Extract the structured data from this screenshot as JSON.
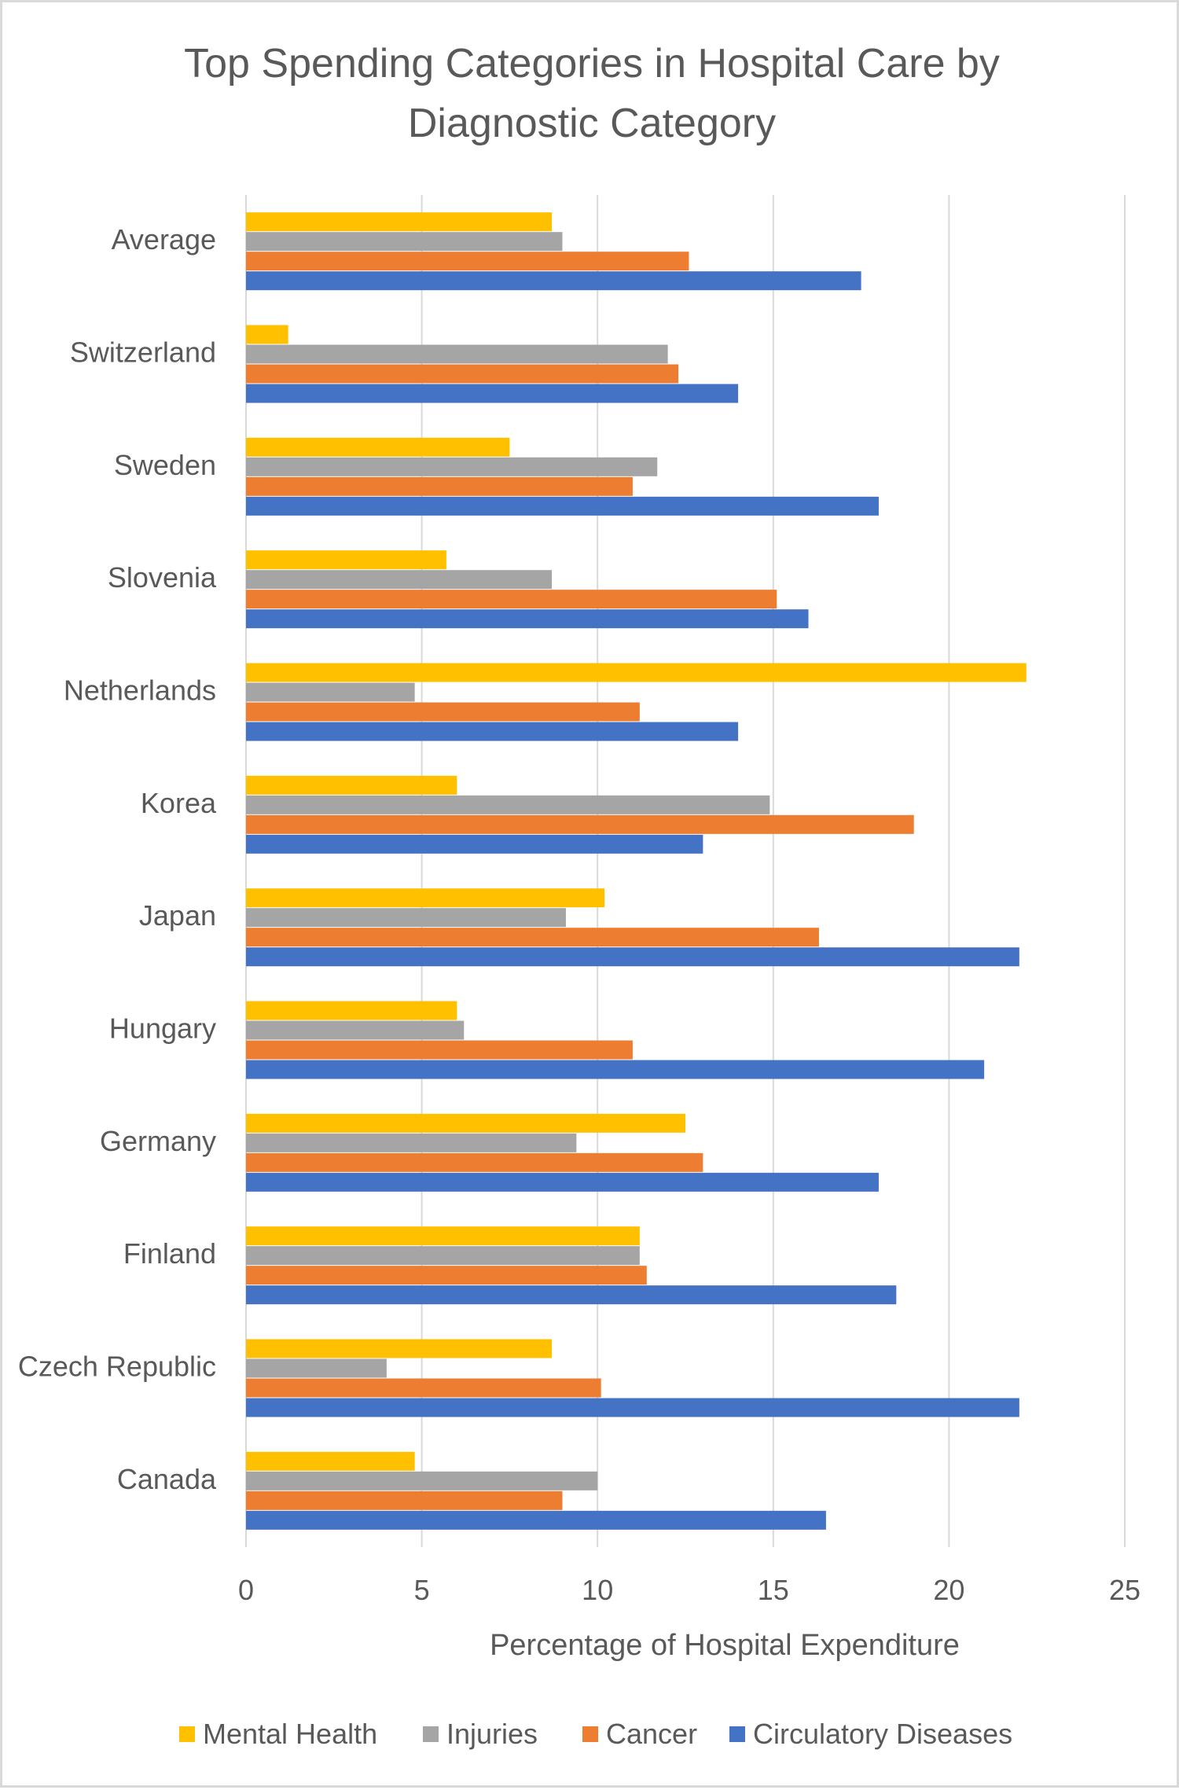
{
  "chart_data": {
    "type": "bar",
    "orientation": "horizontal",
    "title": "Top Spending Categories in Hospital Care by Diagnostic Category",
    "xlabel": "Percentage of Hospital Expenditure",
    "ylabel": "",
    "xlim": [
      0,
      25
    ],
    "xticks": [
      "0",
      "5",
      "10",
      "15",
      "20",
      "25"
    ],
    "grid": true,
    "legend_position": "bottom",
    "categories": [
      "Average",
      "Switzerland",
      "Sweden",
      "Slovenia",
      "Netherlands",
      "Korea",
      "Japan",
      "Hungary",
      "Germany",
      "Finland",
      "Czech Republic",
      "Canada"
    ],
    "series": [
      {
        "name": "Mental Health",
        "color": "#FFC000",
        "values": [
          8.7,
          1.2,
          7.5,
          5.7,
          22.2,
          6.0,
          10.2,
          6.0,
          12.5,
          11.2,
          8.7,
          4.8
        ]
      },
      {
        "name": "Injuries",
        "color": "#A5A5A5",
        "values": [
          9.0,
          12.0,
          11.7,
          8.7,
          4.8,
          14.9,
          9.1,
          6.2,
          9.4,
          11.2,
          4.0,
          10.0
        ]
      },
      {
        "name": "Cancer",
        "color": "#ED7D31",
        "values": [
          12.6,
          12.3,
          11.0,
          15.1,
          11.2,
          19.0,
          16.3,
          11.0,
          13.0,
          11.4,
          10.1,
          9.0
        ]
      },
      {
        "name": "Circulatory Diseases",
        "color": "#4472C4",
        "values": [
          17.5,
          14.0,
          18.0,
          16.0,
          14.0,
          13.0,
          22.0,
          21.0,
          18.0,
          18.5,
          22.0,
          16.5
        ]
      }
    ]
  }
}
